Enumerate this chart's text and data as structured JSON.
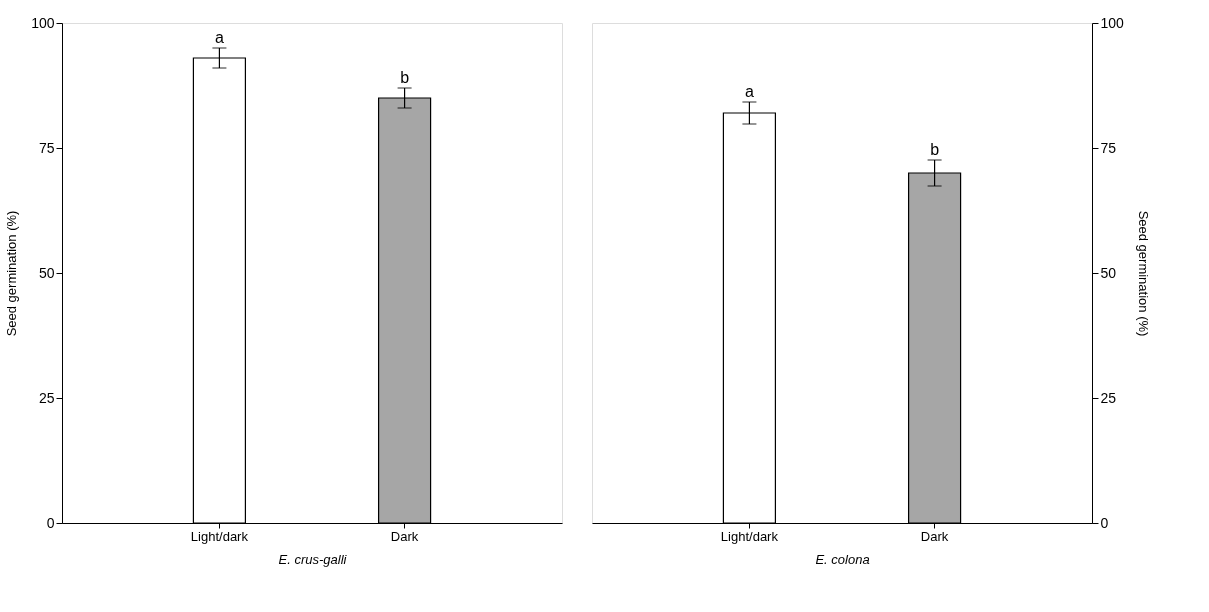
{
  "chart_data": [
    {
      "type": "bar",
      "categories": [
        "Light/dark",
        "Dark"
      ],
      "values": [
        93,
        85
      ],
      "errors": [
        2,
        2
      ],
      "colors": [
        "#ffffff",
        "#a6a6a6"
      ],
      "xlabel": "E. crus-galli",
      "ylabel": "Seed germination (%)",
      "ylim": [
        0,
        100
      ],
      "yticks": [
        0,
        25,
        50,
        75,
        100
      ],
      "grid": false,
      "annotations": [
        {
          "text": "a",
          "x": "Light/dark",
          "y": 95
        },
        {
          "text": "b",
          "x": "Dark",
          "y": 87
        }
      ]
    },
    {
      "type": "bar",
      "categories": [
        "Light/dark",
        "Dark"
      ],
      "values": [
        82,
        70
      ],
      "errors": [
        2.2,
        2.6
      ],
      "colors": [
        "#ffffff",
        "#a6a6a6"
      ],
      "xlabel": "E. colona",
      "ylabel": "Seed germination (%)",
      "ylim": [
        0,
        100
      ],
      "yticks": [
        0,
        25,
        50,
        75,
        100
      ],
      "grid": false,
      "annotations": [
        {
          "text": "a",
          "x": "Light/dark",
          "y": 84.2
        },
        {
          "text": "b",
          "x": "Dark",
          "y": 72.6
        }
      ]
    }
  ]
}
